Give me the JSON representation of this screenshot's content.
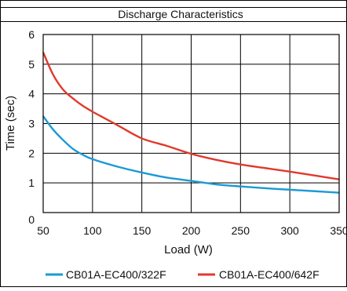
{
  "chart_data": {
    "type": "line",
    "title": "Discharge Characteristics",
    "xlabel": "Load (W)",
    "ylabel": "Time (sec)",
    "xlim": [
      50,
      350
    ],
    "ylim": [
      0,
      6
    ],
    "x_ticks": [
      "50",
      "100",
      "150",
      "200",
      "250",
      "300",
      "350"
    ],
    "y_ticks": [
      "0",
      "1",
      "2",
      "3",
      "4",
      "5",
      "6"
    ],
    "grid": true,
    "legend_position": "bottom",
    "series": [
      {
        "name": "CB01A-EC400/322F",
        "color": "#1a9ad6",
        "x": [
          50,
          60,
          70,
          80,
          90,
          100,
          125,
          150,
          175,
          200,
          225,
          250,
          275,
          300,
          325,
          350
        ],
        "y": [
          3.25,
          2.8,
          2.45,
          2.15,
          1.95,
          1.8,
          1.55,
          1.35,
          1.18,
          1.07,
          0.95,
          0.88,
          0.82,
          0.77,
          0.72,
          0.67
        ]
      },
      {
        "name": "CB01A-EC400/642F",
        "color": "#e03a2c",
        "x": [
          50,
          60,
          70,
          80,
          90,
          100,
          125,
          150,
          175,
          200,
          225,
          250,
          275,
          300,
          325,
          350
        ],
        "y": [
          5.4,
          4.65,
          4.15,
          3.85,
          3.6,
          3.4,
          2.95,
          2.5,
          2.25,
          1.98,
          1.78,
          1.62,
          1.5,
          1.38,
          1.25,
          1.12
        ]
      }
    ]
  }
}
